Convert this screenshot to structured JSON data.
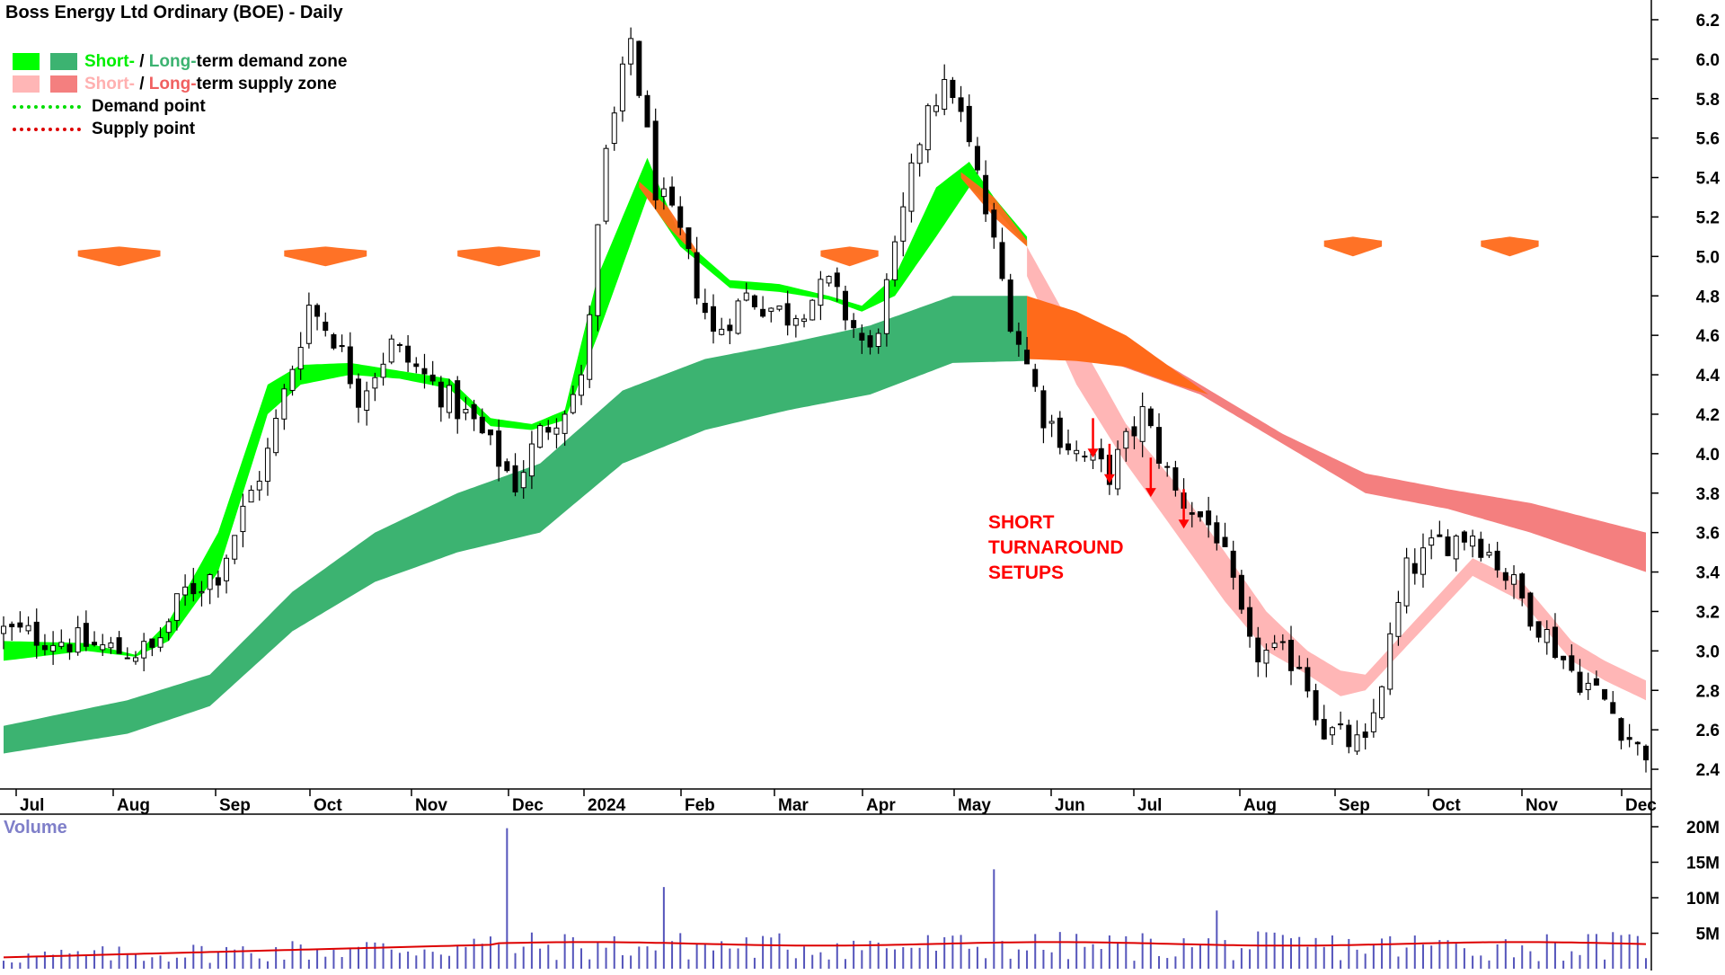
{
  "title": "Boss Energy Ltd Ordinary (BOE) - Daily",
  "legend": {
    "demand_zone": {
      "short": "Short-",
      "sep": " / ",
      "long": "Long-",
      "rest": "term demand zone"
    },
    "supply_zone": {
      "short": "Short-",
      "sep": " / ",
      "long": "Long-",
      "rest": "term supply zone"
    },
    "demand_point": "Demand point",
    "supply_point": "Supply point"
  },
  "annotation": {
    "line1": "SHORT",
    "line2": "TURNAROUND",
    "line3": "SETUPS"
  },
  "volume_label": "Volume",
  "colors": {
    "short_demand": "#00ff00",
    "long_demand": "#3cb371",
    "short_supply": "#ffb6b6",
    "long_supply": "#f47f7f",
    "transition": "#ff6a1a",
    "demand_point": "#00dd00",
    "supply_point": "#dd0000",
    "arrow": "#ff0000",
    "volume_bar": "#5555bb",
    "volume_avg": "#dd0000"
  },
  "chart_data": [
    {
      "type": "candlestick",
      "title": "Boss Energy Ltd Ordinary (BOE) - Daily",
      "x_ticks": [
        "Jul",
        "Aug",
        "Sep",
        "Oct",
        "Nov",
        "Dec",
        "2024",
        "Feb",
        "Mar",
        "Apr",
        "May",
        "Jun",
        "Jul",
        "Aug",
        "Sep",
        "Oct",
        "Nov",
        "Dec"
      ],
      "y_ticks": [
        2.4,
        2.6,
        2.8,
        3.0,
        3.2,
        3.4,
        3.6,
        3.8,
        4.0,
        4.2,
        4.4,
        4.6,
        4.8,
        5.0,
        5.2,
        5.4,
        5.6,
        5.8,
        6.0,
        6.2
      ],
      "ylim": [
        2.3,
        6.3
      ],
      "price_path": [
        [
          0,
          3.1
        ],
        [
          8,
          3.05
        ],
        [
          14,
          3.0
        ],
        [
          18,
          3.0
        ],
        [
          22,
          3.3
        ],
        [
          26,
          3.4
        ],
        [
          32,
          4.0
        ],
        [
          37,
          4.75
        ],
        [
          40,
          4.6
        ],
        [
          43,
          4.3
        ],
        [
          47,
          4.55
        ],
        [
          52,
          4.35
        ],
        [
          57,
          4.15
        ],
        [
          62,
          3.85
        ],
        [
          65,
          4.1
        ],
        [
          70,
          4.35
        ],
        [
          73,
          5.5
        ],
        [
          76,
          6.1
        ],
        [
          79,
          5.35
        ],
        [
          82,
          5.1
        ],
        [
          86,
          4.6
        ],
        [
          90,
          4.8
        ],
        [
          95,
          4.7
        ],
        [
          100,
          4.85
        ],
        [
          105,
          4.5
        ],
        [
          108,
          5.0
        ],
        [
          112,
          5.8
        ],
        [
          115,
          5.85
        ],
        [
          118,
          5.4
        ],
        [
          122,
          4.7
        ],
        [
          126,
          4.2
        ],
        [
          130,
          4.0
        ],
        [
          134,
          3.9
        ],
        [
          138,
          4.2
        ],
        [
          142,
          3.8
        ],
        [
          147,
          3.6
        ],
        [
          151,
          3.0
        ],
        [
          157,
          2.95
        ],
        [
          160,
          2.6
        ],
        [
          165,
          2.5
        ],
        [
          170,
          3.4
        ],
        [
          174,
          3.55
        ],
        [
          178,
          3.6
        ],
        [
          181,
          3.45
        ],
        [
          185,
          3.2
        ],
        [
          190,
          2.9
        ],
        [
          194,
          2.75
        ],
        [
          198,
          2.5
        ]
      ],
      "demand_zone": {
        "short_top": [
          [
            0,
            3.05
          ],
          [
            10,
            3.04
          ],
          [
            16,
            2.98
          ],
          [
            20,
            3.15
          ],
          [
            26,
            3.6
          ],
          [
            32,
            4.35
          ],
          [
            36,
            4.45
          ],
          [
            42,
            4.46
          ],
          [
            48,
            4.42
          ],
          [
            54,
            4.38
          ],
          [
            59,
            4.18
          ],
          [
            64,
            4.15
          ],
          [
            68,
            4.22
          ],
          [
            72,
            4.9
          ],
          [
            78,
            5.5
          ],
          [
            82,
            5.1
          ],
          [
            88,
            4.88
          ],
          [
            94,
            4.86
          ],
          [
            100,
            4.8
          ],
          [
            104,
            4.75
          ],
          [
            108,
            4.9
          ],
          [
            113,
            5.35
          ],
          [
            117,
            5.48
          ],
          [
            120,
            5.3
          ],
          [
            124,
            5.1
          ]
        ],
        "short_bottom": [
          [
            0,
            2.95
          ],
          [
            10,
            3.0
          ],
          [
            16,
            2.97
          ],
          [
            20,
            3.05
          ],
          [
            26,
            3.4
          ],
          [
            32,
            4.2
          ],
          [
            36,
            4.35
          ],
          [
            42,
            4.4
          ],
          [
            48,
            4.38
          ],
          [
            54,
            4.33
          ],
          [
            59,
            4.14
          ],
          [
            64,
            4.12
          ],
          [
            68,
            4.17
          ],
          [
            72,
            4.6
          ],
          [
            78,
            5.3
          ],
          [
            82,
            5.05
          ],
          [
            88,
            4.84
          ],
          [
            94,
            4.82
          ],
          [
            100,
            4.78
          ],
          [
            104,
            4.72
          ],
          [
            108,
            4.8
          ],
          [
            113,
            5.1
          ],
          [
            117,
            5.35
          ],
          [
            120,
            5.25
          ],
          [
            124,
            5.05
          ]
        ],
        "long_top": [
          [
            0,
            2.62
          ],
          [
            15,
            2.75
          ],
          [
            25,
            2.88
          ],
          [
            35,
            3.3
          ],
          [
            45,
            3.6
          ],
          [
            55,
            3.8
          ],
          [
            65,
            3.95
          ],
          [
            75,
            4.32
          ],
          [
            85,
            4.48
          ],
          [
            95,
            4.56
          ],
          [
            105,
            4.65
          ],
          [
            115,
            4.8
          ],
          [
            124,
            4.8
          ]
        ],
        "long_bottom": [
          [
            0,
            2.48
          ],
          [
            15,
            2.58
          ],
          [
            25,
            2.72
          ],
          [
            35,
            3.1
          ],
          [
            45,
            3.35
          ],
          [
            55,
            3.5
          ],
          [
            65,
            3.6
          ],
          [
            75,
            3.95
          ],
          [
            85,
            4.12
          ],
          [
            95,
            4.22
          ],
          [
            105,
            4.3
          ],
          [
            115,
            4.46
          ],
          [
            124,
            4.47
          ]
        ]
      },
      "supply_zone": {
        "short_top": [
          [
            124,
            5.05
          ],
          [
            130,
            4.6
          ],
          [
            136,
            4.15
          ],
          [
            142,
            3.85
          ],
          [
            148,
            3.5
          ],
          [
            153,
            3.2
          ],
          [
            158,
            3.0
          ],
          [
            162,
            2.9
          ],
          [
            165,
            2.88
          ],
          [
            178,
            3.47
          ],
          [
            184,
            3.35
          ],
          [
            190,
            3.05
          ],
          [
            194,
            2.95
          ],
          [
            199,
            2.85
          ]
        ],
        "short_bottom": [
          [
            124,
            4.9
          ],
          [
            130,
            4.35
          ],
          [
            136,
            3.95
          ],
          [
            142,
            3.6
          ],
          [
            148,
            3.25
          ],
          [
            153,
            3.0
          ],
          [
            158,
            2.88
          ],
          [
            162,
            2.77
          ],
          [
            165,
            2.8
          ],
          [
            178,
            3.38
          ],
          [
            184,
            3.25
          ],
          [
            190,
            2.95
          ],
          [
            194,
            2.85
          ],
          [
            199,
            2.75
          ]
        ],
        "long_top": [
          [
            124,
            4.8
          ],
          [
            135,
            4.6
          ],
          [
            145,
            4.35
          ],
          [
            155,
            4.1
          ],
          [
            165,
            3.9
          ],
          [
            175,
            3.82
          ],
          [
            185,
            3.75
          ],
          [
            199,
            3.6
          ]
        ],
        "long_bottom": [
          [
            124,
            4.5
          ],
          [
            135,
            4.45
          ],
          [
            145,
            4.3
          ],
          [
            155,
            4.05
          ],
          [
            165,
            3.8
          ],
          [
            175,
            3.72
          ],
          [
            185,
            3.6
          ],
          [
            199,
            3.4
          ]
        ]
      }
    },
    {
      "type": "bar",
      "title": "Volume",
      "y_ticks": [
        5,
        10,
        15,
        20
      ],
      "y_tick_labels": [
        "5M",
        "10M",
        "15M",
        "20M"
      ],
      "ylim": [
        0,
        20
      ],
      "average_level": 3.5,
      "spikes": [
        [
          61,
          19.8
        ],
        [
          80,
          11.5
        ],
        [
          120,
          14
        ],
        [
          147,
          8.2
        ]
      ]
    }
  ]
}
